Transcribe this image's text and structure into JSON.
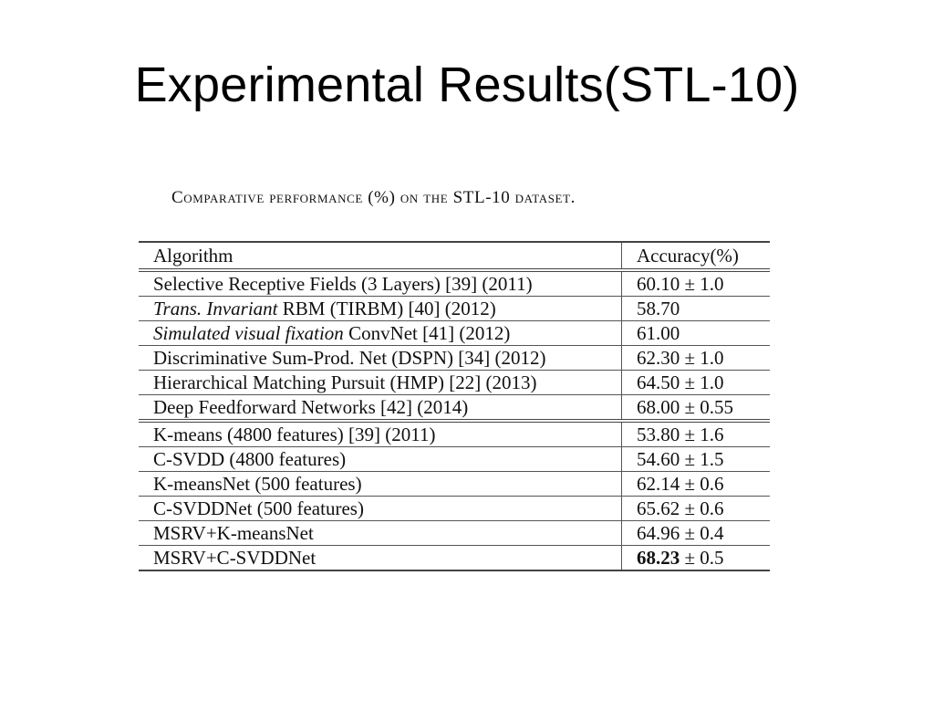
{
  "slide": {
    "title": "Experimental Results(STL-10)"
  },
  "table": {
    "caption": "Comparative performance (%) on the STL-10 dataset.",
    "headers": {
      "algorithm": "Algorithm",
      "accuracy": "Accuracy(%)"
    },
    "rows": [
      {
        "italic_part": "",
        "algorithm": "Selective Receptive Fields (3 Layers) [39] (2011)",
        "accuracy": "60.10 ± 1.0"
      },
      {
        "italic_part": "Trans. Invariant",
        "algorithm": " RBM (TIRBM) [40] (2012)",
        "accuracy": "58.70"
      },
      {
        "italic_part": "Simulated visual fixation",
        "algorithm": " ConvNet [41] (2012)",
        "accuracy": "61.00"
      },
      {
        "italic_part": "",
        "algorithm": "Discriminative Sum-Prod. Net (DSPN) [34] (2012)",
        "accuracy": "62.30 ± 1.0"
      },
      {
        "italic_part": "",
        "algorithm": "Hierarchical Matching Pursuit (HMP) [22] (2013)",
        "accuracy": "64.50 ± 1.0"
      },
      {
        "italic_part": "",
        "algorithm": "Deep Feedforward Networks [42] (2014)",
        "accuracy": "68.00 ± 0.55"
      },
      {
        "italic_part": "",
        "algorithm": "K-means (4800 features) [39] (2011)",
        "accuracy": "53.80 ± 1.6"
      },
      {
        "italic_part": "",
        "algorithm": "C-SVDD (4800 features)",
        "accuracy": "54.60 ± 1.5"
      },
      {
        "italic_part": "",
        "algorithm": "K-meansNet (500 features)",
        "accuracy": "62.14 ± 0.6"
      },
      {
        "italic_part": "",
        "algorithm": "C-SVDDNet (500 features)",
        "accuracy": "65.62 ± 0.6"
      },
      {
        "italic_part": "",
        "algorithm": "MSRV+K-meansNet",
        "accuracy": "64.96 ± 0.4"
      },
      {
        "italic_part": "",
        "algorithm": "MSRV+C-SVDDNet",
        "accuracy_bold": "68.23",
        "accuracy": " ± 0.5"
      }
    ]
  }
}
